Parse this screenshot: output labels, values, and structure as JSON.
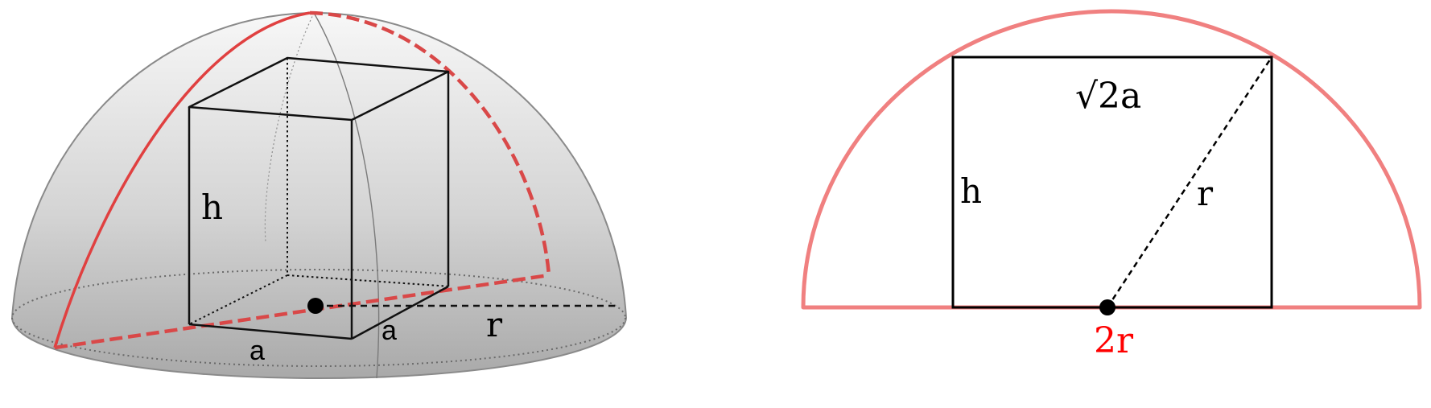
{
  "left_diagram": {
    "labels": {
      "h": "h",
      "a_front": "a",
      "a_side": "a",
      "r": "r"
    }
  },
  "right_diagram": {
    "labels": {
      "top": "√2a",
      "h": "h",
      "r": "r",
      "base": "2r"
    }
  },
  "colors": {
    "red_curve": "#e04040",
    "red_dashed": "#d94848",
    "semicircle": "#f08080",
    "base_label": "#ff0000",
    "line": "#000000"
  }
}
